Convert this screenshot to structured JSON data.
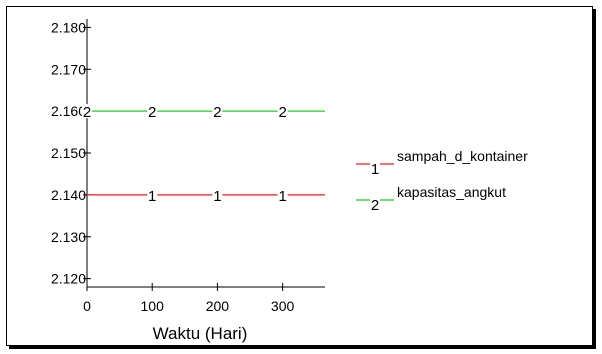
{
  "chart_data": {
    "type": "line",
    "xlabel": "Waktu (Hari)",
    "ylabel": "",
    "title": "",
    "xlim": [
      0,
      365
    ],
    "ylim": [
      2.118,
      2.182
    ],
    "x_ticks": [
      0,
      100,
      200,
      300
    ],
    "x_tick_labels": [
      "0",
      "100",
      "200",
      "300"
    ],
    "y_ticks": [
      2.12,
      2.13,
      2.14,
      2.15,
      2.16,
      2.17,
      2.18
    ],
    "y_tick_labels": [
      "2.120",
      "2.130",
      "2.140",
      "2.150",
      "2.160",
      "2.170",
      "2.180"
    ],
    "grid": false,
    "legend_position": "right",
    "series": [
      {
        "name": "sampah_d_kontainer",
        "marker": "1",
        "color": "#e02020",
        "x": [
          0,
          365
        ],
        "y": [
          2.14,
          2.14
        ],
        "marker_x": [
          100,
          200,
          300
        ]
      },
      {
        "name": "kapasitas_angkut",
        "marker": "2",
        "color": "#22cc22",
        "x": [
          0,
          365
        ],
        "y": [
          2.16,
          2.16
        ],
        "marker_x": [
          0,
          100,
          200,
          300
        ]
      }
    ]
  }
}
